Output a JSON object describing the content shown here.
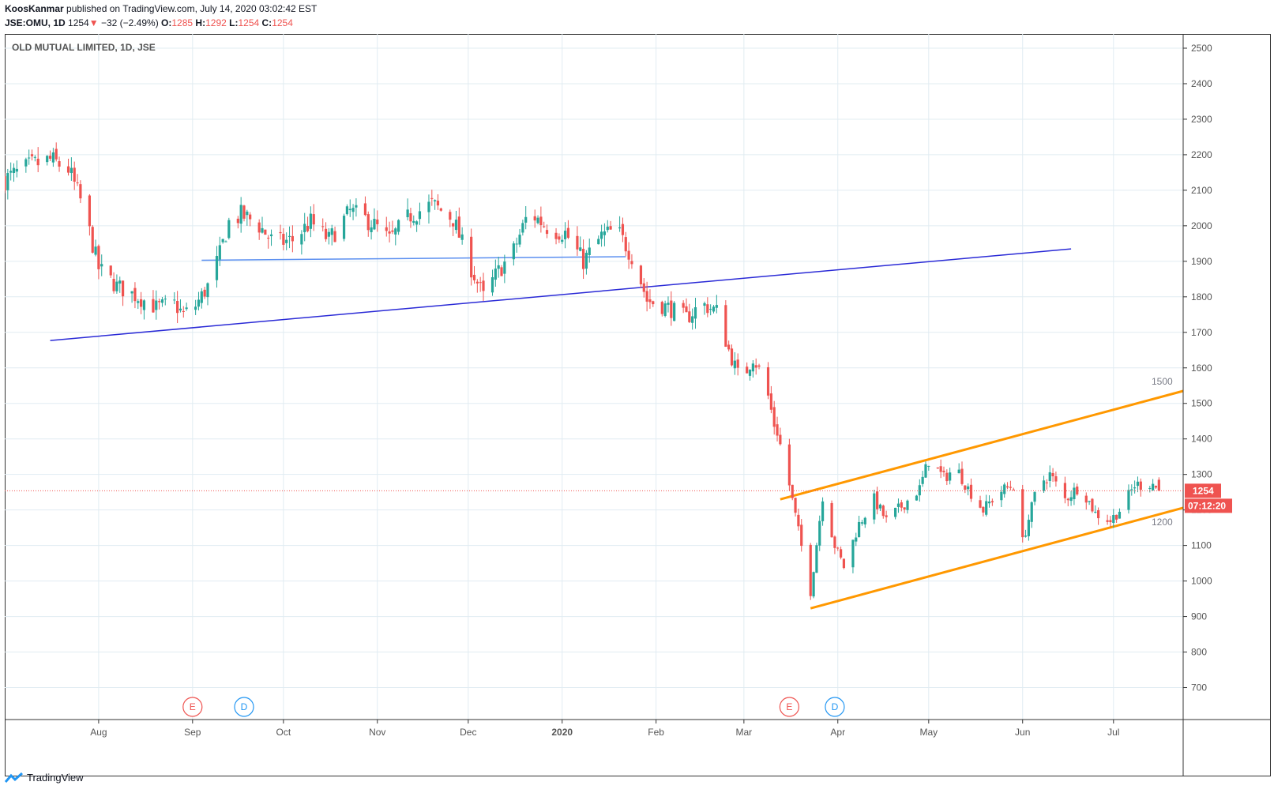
{
  "header": {
    "author": "KoosKanmar",
    "published_text": " published on TradingView.com, July 14, 2020 03:02:42 EST",
    "symbol": "JSE:OMU, 1D",
    "last": "1254",
    "change_arrow": "▼",
    "change": "−32 (−2.49%)",
    "o_label": "O:",
    "o_value": "1285",
    "h_label": "H:",
    "h_value": "1292",
    "l_label": "L:",
    "l_value": "1254",
    "c_label": "C:",
    "c_value": "1254"
  },
  "legend_title": "OLD MUTUAL LIMITED, 1D, JSE",
  "footer": {
    "brand": "TradingView"
  },
  "colors": {
    "up": "#26a69a",
    "down": "#ef5350",
    "grid": "#e1ecf2",
    "trend_blue": "#2a2ad6",
    "neckline_blue": "#5b8ff0",
    "channel": "#ff9800",
    "event_e": "#ef5350",
    "event_d": "#2196f3",
    "axis_text": "#555555"
  },
  "chart_data": {
    "type": "candlestick",
    "x_axis_labels": [
      "Aug",
      "Sep",
      "Oct",
      "Nov",
      "Dec",
      "2020",
      "Feb",
      "Mar",
      "Apr",
      "May",
      "Jun",
      "Jul"
    ],
    "x_range": [
      "2019-07-01",
      "2020-07-24"
    ],
    "y_ticks": [
      700,
      800,
      900,
      1000,
      1100,
      1200,
      1300,
      1400,
      1500,
      1600,
      1700,
      1800,
      1900,
      2000,
      2100,
      2200,
      2300,
      2400,
      2500
    ],
    "ylim": [
      610,
      2540
    ],
    "last_price_label": "1254",
    "countdown_label": "07:12:20",
    "last_price": 1254,
    "events": [
      {
        "label": "E",
        "date": "2019-09-01"
      },
      {
        "label": "D",
        "date": "2019-09-18"
      },
      {
        "label": "E",
        "date": "2020-03-16"
      },
      {
        "label": "D",
        "date": "2020-03-31"
      }
    ],
    "trendlines": [
      {
        "name": "support",
        "points": [
          [
            "2019-07-16",
            1677
          ],
          [
            "2020-06-17",
            1935
          ]
        ]
      },
      {
        "name": "neckline",
        "points": [
          [
            "2019-09-04",
            1903
          ],
          [
            "2020-01-22",
            1913
          ]
        ]
      },
      {
        "name": "channel-top",
        "points": [
          [
            "2020-03-13",
            1230
          ],
          [
            "2020-07-24",
            1535
          ]
        ],
        "label": "1500"
      },
      {
        "name": "channel-bottom",
        "points": [
          [
            "2020-03-23",
            923
          ],
          [
            "2020-07-24",
            1206
          ]
        ],
        "label": "1200"
      }
    ],
    "anchors": [
      [
        "2019-07-01",
        2130
      ],
      [
        "2019-07-10",
        2170
      ],
      [
        "2019-07-16",
        2185
      ],
      [
        "2019-07-22",
        2160
      ],
      [
        "2019-07-27",
        2050
      ],
      [
        "2019-08-01",
        1880
      ],
      [
        "2019-08-07",
        1830
      ],
      [
        "2019-08-14",
        1800
      ],
      [
        "2019-08-20",
        1770
      ],
      [
        "2019-08-26",
        1780
      ],
      [
        "2019-08-29",
        1750
      ],
      [
        "2019-09-02",
        1775
      ],
      [
        "2019-09-06",
        1830
      ],
      [
        "2019-09-10",
        1920
      ],
      [
        "2019-09-13",
        2010
      ],
      [
        "2019-09-17",
        2030
      ],
      [
        "2019-09-22",
        2010
      ],
      [
        "2019-09-28",
        1950
      ],
      [
        "2019-10-04",
        1960
      ],
      [
        "2019-10-10",
        2010
      ],
      [
        "2019-10-16",
        1960
      ],
      [
        "2019-10-23",
        2040
      ],
      [
        "2019-10-30",
        2010
      ],
      [
        "2019-11-05",
        1960
      ],
      [
        "2019-11-12",
        2030
      ],
      [
        "2019-11-19",
        2060
      ],
      [
        "2019-11-26",
        2020
      ],
      [
        "2019-12-01",
        1900
      ],
      [
        "2019-12-06",
        1800
      ],
      [
        "2019-12-10",
        1860
      ],
      [
        "2019-12-16",
        1930
      ],
      [
        "2019-12-21",
        2040
      ],
      [
        "2019-12-28",
        1990
      ],
      [
        "2020-01-02",
        1980
      ],
      [
        "2020-01-08",
        1900
      ],
      [
        "2020-01-14",
        1970
      ],
      [
        "2020-01-19",
        1990
      ],
      [
        "2020-01-25",
        1900
      ],
      [
        "2020-01-29",
        1790
      ],
      [
        "2020-02-05",
        1770
      ],
      [
        "2020-02-11",
        1740
      ],
      [
        "2020-02-16",
        1780
      ],
      [
        "2020-02-21",
        1760
      ],
      [
        "2020-02-25",
        1650
      ],
      [
        "2020-02-29",
        1560
      ],
      [
        "2020-03-04",
        1630
      ],
      [
        "2020-03-08",
        1560
      ],
      [
        "2020-03-11",
        1440
      ],
      [
        "2020-03-12",
        1420
      ],
      [
        "2020-03-16",
        1270
      ],
      [
        "2020-03-19",
        1140
      ],
      [
        "2020-03-23",
        970
      ],
      [
        "2020-03-27",
        1240
      ],
      [
        "2020-03-31",
        1100
      ],
      [
        "2020-04-03",
        1040
      ],
      [
        "2020-04-08",
        1160
      ],
      [
        "2020-04-13",
        1230
      ],
      [
        "2020-04-17",
        1170
      ],
      [
        "2020-04-22",
        1210
      ],
      [
        "2020-04-28",
        1260
      ],
      [
        "2020-05-01",
        1340
      ],
      [
        "2020-05-06",
        1290
      ],
      [
        "2020-05-10",
        1320
      ],
      [
        "2020-05-14",
        1260
      ],
      [
        "2020-05-19",
        1200
      ],
      [
        "2020-05-24",
        1250
      ],
      [
        "2020-05-29",
        1270
      ],
      [
        "2020-06-01",
        1110
      ],
      [
        "2020-06-06",
        1270
      ],
      [
        "2020-06-10",
        1300
      ],
      [
        "2020-06-15",
        1230
      ],
      [
        "2020-06-20",
        1270
      ],
      [
        "2020-06-25",
        1190
      ],
      [
        "2020-06-30",
        1170
      ],
      [
        "2020-07-04",
        1210
      ],
      [
        "2020-07-08",
        1270
      ],
      [
        "2020-07-14",
        1275
      ],
      [
        "2020-07-16",
        1254
      ]
    ]
  }
}
